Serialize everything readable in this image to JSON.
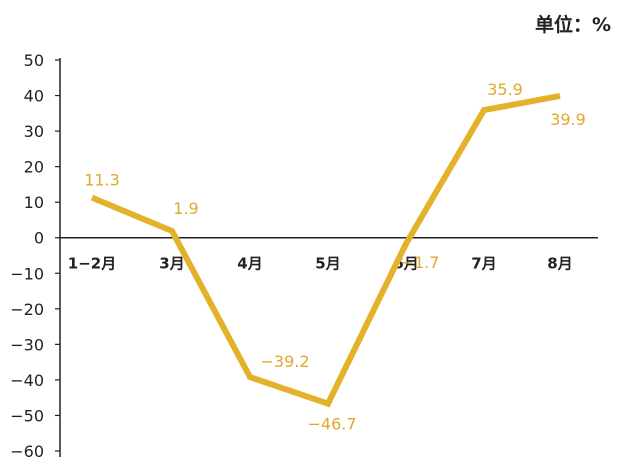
{
  "unit_label": "单位：%",
  "chart_data": {
    "type": "line",
    "title": "",
    "xlabel": "",
    "ylabel": "",
    "categories": [
      "1−2月",
      "3月",
      "4月",
      "5月",
      "6月",
      "7月",
      "8月"
    ],
    "series": [
      {
        "values": [
          11.3,
          1.9,
          -39.2,
          -46.7,
          -1.7,
          35.9,
          39.9
        ]
      }
    ],
    "data_labels": [
      "11.3",
      "1.9",
      "−39.2",
      "−46.7",
      "−1.7",
      "35.9",
      "39.9"
    ],
    "ylim": [
      -60,
      50
    ],
    "yticks": [
      50,
      40,
      30,
      20,
      10,
      0,
      -10,
      -20,
      -30,
      -40,
      -50,
      -60
    ],
    "ytick_labels": [
      "50",
      "40",
      "30",
      "20",
      "10",
      "0",
      "−10",
      "−20",
      "−30",
      "−40",
      "−50",
      "−60"
    ],
    "grid": false,
    "legend": "none",
    "colors": {
      "line": "#E4B12B",
      "label": "#E0A92A",
      "axis": "#222222"
    }
  }
}
